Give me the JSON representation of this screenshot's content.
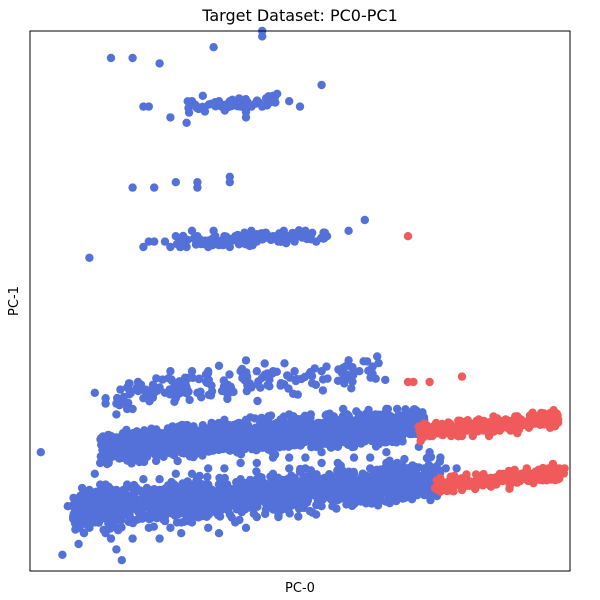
{
  "chart_data": {
    "type": "scatter",
    "title": "Target Dataset: PC0-PC1",
    "xlabel": "PC-0",
    "ylabel": "PC-1",
    "xlim": [
      0,
      100
    ],
    "ylim": [
      0,
      100
    ],
    "xticks": [],
    "yticks": [],
    "grid": false,
    "legend": "none",
    "colors": {
      "blue": "#5470d9",
      "red": "#f05a5a",
      "axes": "#000000"
    },
    "point_density": 5,
    "series": [
      {
        "color": "blue",
        "points": [
          [
            15,
            95
          ],
          [
            19,
            95
          ],
          [
            24,
            94
          ],
          [
            34,
            97
          ],
          [
            43,
            99
          ],
          [
            43,
            100
          ],
          [
            21,
            86
          ],
          [
            22,
            86
          ],
          [
            26,
            84
          ],
          [
            29,
            83
          ],
          [
            30,
            87
          ],
          [
            32,
            88
          ],
          [
            35,
            87
          ],
          [
            36,
            86
          ],
          [
            37,
            87
          ],
          [
            39,
            86
          ],
          [
            40,
            84
          ],
          [
            40,
            85
          ],
          [
            41,
            86
          ],
          [
            42,
            87
          ],
          [
            43,
            86
          ],
          [
            44,
            87
          ],
          [
            45,
            88
          ],
          [
            48,
            87
          ],
          [
            50,
            86
          ],
          [
            54,
            90
          ],
          [
            19,
            71
          ],
          [
            23,
            71
          ],
          [
            27,
            72
          ],
          [
            31,
            72
          ],
          [
            31,
            71
          ],
          [
            37,
            73
          ],
          [
            37,
            72
          ],
          [
            11,
            58
          ],
          [
            21,
            60
          ],
          [
            22,
            61
          ],
          [
            23,
            61
          ],
          [
            25,
            61
          ],
          [
            26,
            60
          ],
          [
            27,
            62
          ],
          [
            28,
            61
          ],
          [
            29,
            60
          ],
          [
            30,
            63
          ],
          [
            31,
            62
          ],
          [
            33,
            60
          ],
          [
            34,
            63
          ],
          [
            35,
            61
          ],
          [
            36,
            62
          ],
          [
            37,
            60
          ],
          [
            38,
            62
          ],
          [
            39,
            61
          ],
          [
            40,
            62
          ],
          [
            41,
            63
          ],
          [
            42,
            61
          ],
          [
            43,
            62
          ],
          [
            45,
            62
          ],
          [
            46,
            61
          ],
          [
            47,
            63
          ],
          [
            48,
            62
          ],
          [
            49,
            61
          ],
          [
            50,
            62
          ],
          [
            51,
            63
          ],
          [
            53,
            61
          ],
          [
            55,
            62
          ],
          [
            59,
            63
          ],
          [
            62,
            65
          ],
          [
            2,
            22
          ],
          [
            6,
            3
          ],
          [
            17,
            2
          ],
          [
            14,
            31
          ],
          [
            14,
            32
          ],
          [
            16,
            31
          ],
          [
            12,
            33
          ],
          [
            18,
            34
          ],
          [
            20,
            35
          ],
          [
            24,
            34
          ],
          [
            26,
            37
          ],
          [
            30,
            37
          ],
          [
            33,
            37
          ],
          [
            35,
            38
          ],
          [
            39,
            37
          ],
          [
            40,
            39
          ],
          [
            42,
            37
          ],
          [
            45,
            37
          ],
          [
            49,
            37
          ],
          [
            54,
            37
          ],
          [
            61,
            37
          ],
          [
            16,
            29
          ],
          [
            18,
            30
          ],
          [
            17,
            31
          ],
          [
            19,
            30
          ],
          [
            21,
            32
          ],
          [
            23,
            33
          ],
          [
            25,
            33
          ],
          [
            27,
            32
          ],
          [
            29,
            34
          ],
          [
            31,
            33
          ],
          [
            9,
            5
          ],
          [
            10,
            7
          ],
          [
            15,
            6
          ],
          [
            16,
            4
          ],
          [
            19,
            6
          ],
          [
            22,
            8
          ],
          [
            24,
            6
          ],
          [
            26,
            8
          ],
          [
            28,
            7
          ],
          [
            30,
            9
          ],
          [
            33,
            8
          ],
          [
            35,
            7
          ],
          [
            38,
            9
          ],
          [
            40,
            8
          ],
          [
            42,
            10
          ],
          [
            46,
            10
          ],
          [
            50,
            12
          ],
          [
            54,
            12
          ],
          [
            58,
            14
          ],
          [
            61,
            15
          ],
          [
            8,
            10
          ],
          [
            7,
            12
          ],
          [
            10,
            13
          ],
          [
            11,
            15
          ],
          [
            13,
            16
          ],
          [
            10,
            11
          ],
          [
            12,
            18
          ],
          [
            14,
            16
          ],
          [
            13,
            20
          ],
          [
            16,
            22
          ],
          [
            20,
            23
          ],
          [
            22,
            24
          ],
          [
            26,
            25
          ],
          [
            30,
            26
          ],
          [
            32,
            27
          ],
          [
            36,
            28
          ],
          [
            40,
            28
          ],
          [
            44,
            28
          ],
          [
            48,
            29
          ],
          [
            52,
            29
          ],
          [
            55,
            29
          ],
          [
            58,
            30
          ],
          [
            61,
            29
          ],
          [
            64,
            29
          ],
          [
            66,
            30
          ],
          [
            68,
            30
          ],
          [
            70,
            29
          ],
          [
            72,
            28
          ],
          [
            73,
            28
          ],
          [
            71,
            27
          ],
          [
            69,
            26
          ],
          [
            67,
            25
          ],
          [
            65,
            24
          ],
          [
            62,
            24
          ],
          [
            60,
            23
          ],
          [
            57,
            23
          ],
          [
            54,
            22
          ],
          [
            51,
            21
          ],
          [
            48,
            21
          ],
          [
            45,
            21
          ],
          [
            42,
            20
          ],
          [
            39,
            20
          ],
          [
            36,
            19
          ],
          [
            33,
            19
          ],
          [
            30,
            18
          ],
          [
            27,
            18
          ],
          [
            24,
            17
          ],
          [
            21,
            17
          ],
          [
            18,
            16
          ],
          [
            16,
            15
          ],
          [
            13,
            14
          ],
          [
            10,
            12
          ],
          [
            12,
            9
          ],
          [
            15,
            10
          ],
          [
            18,
            11
          ],
          [
            21,
            12
          ],
          [
            24,
            13
          ],
          [
            27,
            13
          ],
          [
            30,
            14
          ],
          [
            33,
            14
          ],
          [
            36,
            14
          ],
          [
            39,
            15
          ],
          [
            42,
            15
          ],
          [
            45,
            16
          ],
          [
            48,
            16
          ],
          [
            51,
            16
          ],
          [
            54,
            17
          ],
          [
            57,
            18
          ],
          [
            60,
            18
          ],
          [
            63,
            19
          ],
          [
            66,
            20
          ],
          [
            68,
            20
          ],
          [
            70,
            19
          ],
          [
            73,
            19
          ],
          [
            75,
            18
          ],
          [
            73,
            16
          ],
          [
            70,
            17
          ],
          [
            67,
            17
          ],
          [
            64,
            16
          ],
          [
            61,
            16
          ],
          [
            58,
            15
          ],
          [
            55,
            15
          ],
          [
            52,
            14
          ],
          [
            49,
            14
          ],
          [
            46,
            13
          ],
          [
            43,
            13
          ],
          [
            40,
            12
          ],
          [
            37,
            12
          ],
          [
            34,
            11
          ],
          [
            31,
            11
          ],
          [
            28,
            11
          ],
          [
            25,
            10
          ],
          [
            22,
            10
          ],
          [
            19,
            9
          ],
          [
            16,
            8
          ],
          [
            14,
            7
          ],
          [
            11,
            8
          ],
          [
            56,
            12
          ],
          [
            60,
            13
          ],
          [
            65,
            14
          ],
          [
            68,
            14
          ],
          [
            71,
            16
          ],
          [
            74,
            17
          ],
          [
            77,
            19
          ],
          [
            79,
            19
          ],
          [
            76,
            21
          ],
          [
            74,
            22
          ],
          [
            72,
            23
          ],
          [
            69,
            24
          ],
          [
            66,
            22
          ],
          [
            63,
            21
          ],
          [
            60,
            21
          ],
          [
            57,
            20
          ],
          [
            54,
            20
          ],
          [
            51,
            19
          ],
          [
            48,
            19
          ],
          [
            45,
            18
          ],
          [
            42,
            17
          ],
          [
            39,
            17
          ],
          [
            36,
            16
          ],
          [
            33,
            16
          ],
          [
            30,
            16
          ],
          [
            27,
            15
          ],
          [
            24,
            15
          ],
          [
            21,
            14
          ],
          [
            18,
            13
          ],
          [
            15,
            12
          ]
        ],
        "clusters": [
          {
            "x": [
              13,
              73
            ],
            "y": [
              21,
              29
            ],
            "n": 1400
          },
          {
            "x": [
              8,
              76
            ],
            "y": [
              9,
              19
            ],
            "n": 1300
          },
          {
            "x": [
              16,
              66
            ],
            "y": [
              31,
              39
            ],
            "n": 160
          },
          {
            "x": [
              27,
              55
            ],
            "y": [
              60,
              63
            ],
            "n": 120
          },
          {
            "x": [
              29,
              46
            ],
            "y": [
              85,
              88
            ],
            "n": 60
          }
        ]
      },
      {
        "color": "red",
        "points": [
          [
            70,
            35
          ],
          [
            71,
            35
          ],
          [
            74,
            35
          ],
          [
            80,
            36
          ],
          [
            70,
            62
          ],
          [
            82,
            25
          ],
          [
            76,
            26
          ],
          [
            78,
            25
          ],
          [
            79,
            26
          ],
          [
            80,
            25
          ],
          [
            81,
            26
          ],
          [
            83,
            26
          ],
          [
            84,
            26
          ],
          [
            85,
            25
          ],
          [
            86,
            27
          ],
          [
            87,
            26
          ],
          [
            88,
            27
          ],
          [
            89,
            26
          ],
          [
            90,
            27
          ],
          [
            91,
            28
          ],
          [
            92,
            27
          ],
          [
            93,
            28
          ],
          [
            94,
            28
          ],
          [
            95,
            29
          ],
          [
            96,
            29
          ],
          [
            97,
            28
          ],
          [
            76,
            15
          ],
          [
            78,
            15
          ],
          [
            79,
            16
          ],
          [
            80,
            15
          ],
          [
            81,
            16
          ],
          [
            82,
            16
          ],
          [
            83,
            16
          ],
          [
            84,
            17
          ],
          [
            85,
            16
          ],
          [
            86,
            17
          ],
          [
            87,
            18
          ],
          [
            88,
            17
          ],
          [
            89,
            17
          ],
          [
            90,
            18
          ],
          [
            91,
            18
          ],
          [
            92,
            19
          ],
          [
            93,
            18
          ],
          [
            94,
            18
          ],
          [
            95,
            18
          ],
          [
            96,
            19
          ],
          [
            97,
            19
          ],
          [
            98,
            19
          ],
          [
            99,
            19
          ]
        ],
        "clusters": [
          {
            "x": [
              72,
              98
            ],
            "y": [
              25,
              29
            ],
            "n": 220
          },
          {
            "x": [
              75,
              99
            ],
            "y": [
              15,
              19
            ],
            "n": 200
          }
        ]
      }
    ]
  }
}
